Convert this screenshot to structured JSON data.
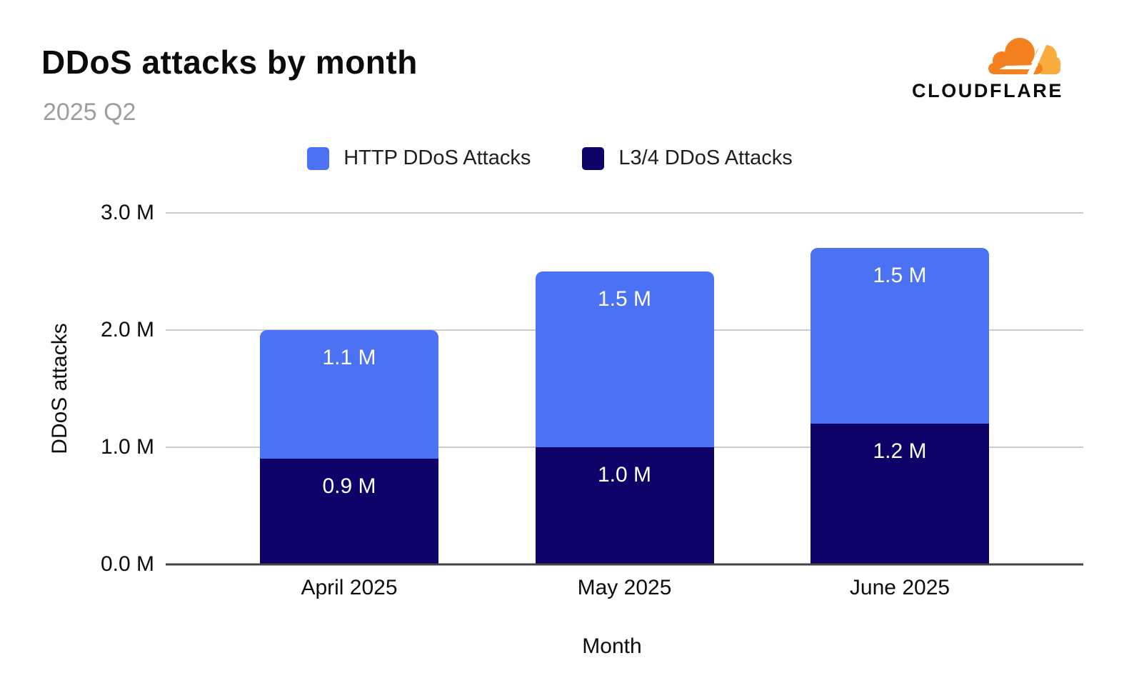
{
  "header": {
    "title": "DDoS attacks by month",
    "subtitle": "2025 Q2",
    "brand": "CLOUDFLARE",
    "brand_colors": {
      "cloud_primary": "#F48120",
      "cloud_secondary": "#FAAD3F",
      "wordmark": "#0C0C0C"
    }
  },
  "chart_data": {
    "type": "bar",
    "stacked": true,
    "title": "DDoS attacks by month",
    "subtitle": "2025 Q2",
    "xlabel": "Month",
    "ylabel": "DDoS attacks",
    "unit": "M",
    "ylim": [
      0,
      3.0
    ],
    "grid": true,
    "legend_position": "top",
    "categories": [
      "April 2025",
      "May 2025",
      "June 2025"
    ],
    "series": [
      {
        "name": "HTTP DDoS Attacks",
        "color": "#4A72F2",
        "values": [
          1.1,
          1.5,
          1.5
        ],
        "labels": [
          "1.1 M",
          "1.5 M",
          "1.5 M"
        ]
      },
      {
        "name": "L3/4 DDoS Attacks",
        "color": "#0D0268",
        "values": [
          0.9,
          1.0,
          1.2
        ],
        "labels": [
          "0.9 M",
          "1.0 M",
          "1.2 M"
        ]
      }
    ],
    "stack_order_bottom_to_top": [
      "L3/4 DDoS Attacks",
      "HTTP DDoS Attacks"
    ],
    "totals": [
      2.0,
      2.5,
      2.7
    ],
    "yticks": [
      {
        "value": 0,
        "label": "0.0 M"
      },
      {
        "value": 1,
        "label": "1.0 M"
      },
      {
        "value": 2,
        "label": "2.0 M"
      },
      {
        "value": 3,
        "label": "3.0 M"
      }
    ],
    "bar_centers_pct": [
      20,
      50,
      80
    ],
    "colors": {
      "gridline": "#CCCCCC",
      "axis_line": "#424242",
      "tick_text": "#0D0D0D",
      "bar_value_text": "#FFFFFF",
      "title_text": "#0B0B0B",
      "subtitle_text": "#9E9E9E"
    }
  }
}
